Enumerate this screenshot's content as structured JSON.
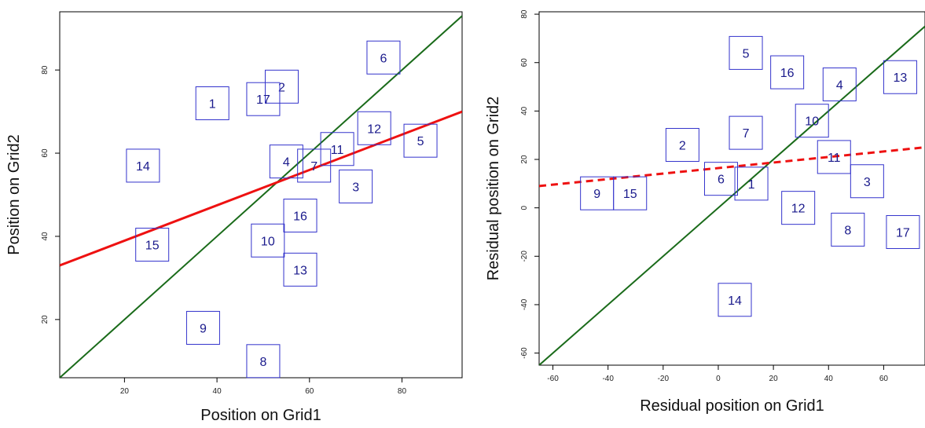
{
  "chart_data": [
    {
      "type": "scatter",
      "marker": "labeled-box",
      "xlabel": "Position on Grid1",
      "ylabel": "Position on Grid2",
      "xlim": [
        6,
        93
      ],
      "ylim": [
        6,
        94
      ],
      "xticks": [
        20,
        40,
        60,
        80
      ],
      "yticks": [
        20,
        40,
        60,
        80
      ],
      "grid": false,
      "points": [
        {
          "label": "1",
          "x": 39,
          "y": 72
        },
        {
          "label": "2",
          "x": 54,
          "y": 76
        },
        {
          "label": "3",
          "x": 70,
          "y": 52
        },
        {
          "label": "4",
          "x": 55,
          "y": 58
        },
        {
          "label": "5",
          "x": 84,
          "y": 63
        },
        {
          "label": "6",
          "x": 76,
          "y": 83
        },
        {
          "label": "7",
          "x": 61,
          "y": 57
        },
        {
          "label": "8",
          "x": 50,
          "y": 10
        },
        {
          "label": "9",
          "x": 37,
          "y": 18
        },
        {
          "label": "10",
          "x": 51,
          "y": 39
        },
        {
          "label": "11",
          "x": 66,
          "y": 61
        },
        {
          "label": "12",
          "x": 74,
          "y": 66
        },
        {
          "label": "13",
          "x": 58,
          "y": 32
        },
        {
          "label": "14",
          "x": 24,
          "y": 57
        },
        {
          "label": "15",
          "x": 26,
          "y": 38
        },
        {
          "label": "16",
          "x": 58,
          "y": 45
        },
        {
          "label": "17",
          "x": 50,
          "y": 73
        }
      ],
      "lines": [
        {
          "kind": "identity",
          "color": "#1a6b1a",
          "style": "solid",
          "x": [
            6,
            93
          ],
          "y": [
            6,
            93
          ]
        },
        {
          "kind": "regression",
          "color": "#ee1111",
          "style": "solid",
          "x": [
            6,
            93
          ],
          "y": [
            33,
            70
          ]
        }
      ]
    },
    {
      "type": "scatter",
      "marker": "labeled-box",
      "xlabel": "Residual position on Grid1",
      "ylabel": "Residual position on Grid2",
      "xlim": [
        -65,
        75
      ],
      "ylim": [
        -65,
        81
      ],
      "xticks": [
        -60,
        -40,
        -20,
        0,
        20,
        40,
        60
      ],
      "yticks": [
        -60,
        -40,
        -20,
        0,
        20,
        40,
        60,
        80
      ],
      "grid": false,
      "points": [
        {
          "label": "1",
          "x": 12,
          "y": 10
        },
        {
          "label": "2",
          "x": -13,
          "y": 26
        },
        {
          "label": "3",
          "x": 54,
          "y": 11
        },
        {
          "label": "4",
          "x": 44,
          "y": 51
        },
        {
          "label": "5",
          "x": 10,
          "y": 64
        },
        {
          "label": "6",
          "x": 1,
          "y": 12
        },
        {
          "label": "7",
          "x": 10,
          "y": 31
        },
        {
          "label": "8",
          "x": 47,
          "y": -9
        },
        {
          "label": "9",
          "x": -44,
          "y": 6
        },
        {
          "label": "10",
          "x": 34,
          "y": 36
        },
        {
          "label": "11",
          "x": 42,
          "y": 21
        },
        {
          "label": "12",
          "x": 29,
          "y": 0
        },
        {
          "label": "13",
          "x": 66,
          "y": 54
        },
        {
          "label": "14",
          "x": 6,
          "y": -38
        },
        {
          "label": "15",
          "x": -32,
          "y": 6
        },
        {
          "label": "16",
          "x": 25,
          "y": 56
        },
        {
          "label": "17",
          "x": 67,
          "y": -10
        }
      ],
      "lines": [
        {
          "kind": "identity",
          "color": "#1a6b1a",
          "style": "solid",
          "x": [
            -65,
            75
          ],
          "y": [
            -65,
            75
          ]
        },
        {
          "kind": "regression",
          "color": "#ee1111",
          "style": "dashed",
          "x": [
            -65,
            75
          ],
          "y": [
            9,
            25
          ]
        }
      ]
    }
  ]
}
